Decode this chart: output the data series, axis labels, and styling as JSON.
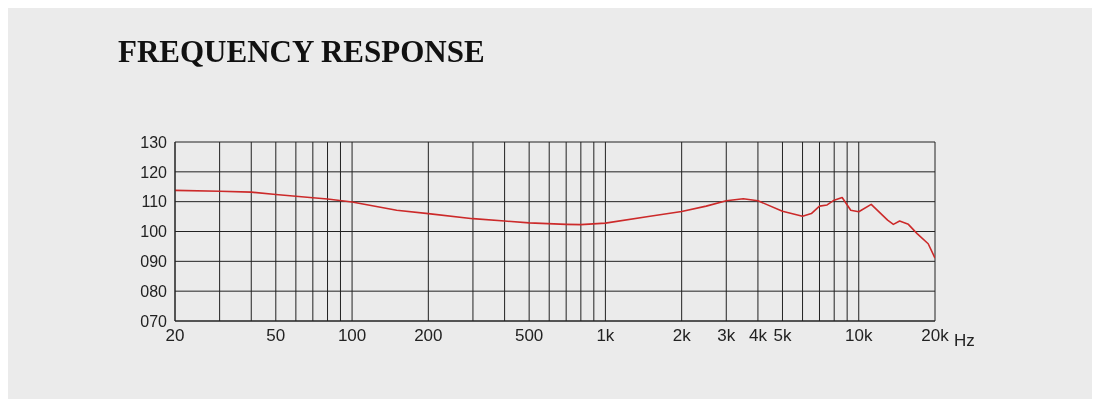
{
  "chart_data": {
    "type": "line",
    "title": "FREQUENCY RESPONSE",
    "xlabel": "Hz",
    "log": "x",
    "grid": true,
    "marker": "none",
    "line_style": "solid",
    "xlim": [
      20,
      20000
    ],
    "xticks": [
      20,
      {
        "value": 30,
        "label": null
      },
      {
        "value": 40,
        "label": null
      },
      50,
      {
        "value": 60,
        "label": null
      },
      {
        "value": 70,
        "label": null
      },
      {
        "value": 80,
        "label": null
      },
      {
        "value": 90,
        "label": null
      },
      100,
      200,
      {
        "value": 300,
        "label": null
      },
      {
        "value": 400,
        "label": null
      },
      500,
      {
        "value": 600,
        "label": null
      },
      {
        "value": 700,
        "label": null
      },
      {
        "value": 800,
        "label": null
      },
      {
        "value": 900,
        "label": null
      },
      {
        "value": 1000,
        "label": "1k"
      },
      {
        "value": 2000,
        "label": "2k"
      },
      {
        "value": 3000,
        "label": "3k"
      },
      {
        "value": 4000,
        "label": "4k"
      },
      {
        "value": 5000,
        "label": "5k"
      },
      {
        "value": 6000,
        "label": null
      },
      {
        "value": 7000,
        "label": null
      },
      {
        "value": 8000,
        "label": null
      },
      {
        "value": 9000,
        "label": null
      },
      {
        "value": 10000,
        "label": "10k"
      },
      {
        "value": 20000,
        "label": "20k"
      }
    ],
    "ylim": [
      70,
      130
    ],
    "yticks": [
      {
        "value": 70,
        "label": "070"
      },
      {
        "value": 80,
        "label": "080"
      },
      {
        "value": 90,
        "label": "090"
      },
      100,
      110,
      120,
      130
    ],
    "x": [
      20,
      30,
      40,
      50,
      70,
      80,
      100,
      150,
      200,
      300,
      400,
      500,
      700,
      800,
      1000,
      1500,
      2000,
      2500,
      3000,
      3500,
      4000,
      5000,
      6000,
      6500,
      7000,
      7500,
      8000,
      8600,
      9300,
      10000,
      11200,
      13000,
      13700,
      14500,
      15700,
      17000,
      18800,
      20000
    ],
    "series": [
      {
        "color": "#cc2a2a",
        "values": [
          113.8,
          113.5,
          113.2,
          112.4,
          111.3,
          110.9,
          109.9,
          107.1,
          106.0,
          104.3,
          103.5,
          102.9,
          102.4,
          102.3,
          102.8,
          105.1,
          106.7,
          108.5,
          110.3,
          111.0,
          110.3,
          106.8,
          105.1,
          106.0,
          108.5,
          108.9,
          110.5,
          111.4,
          107.1,
          106.6,
          109.1,
          103.8,
          102.4,
          103.5,
          102.4,
          99.3,
          95.9,
          91.1
        ]
      }
    ]
  }
}
